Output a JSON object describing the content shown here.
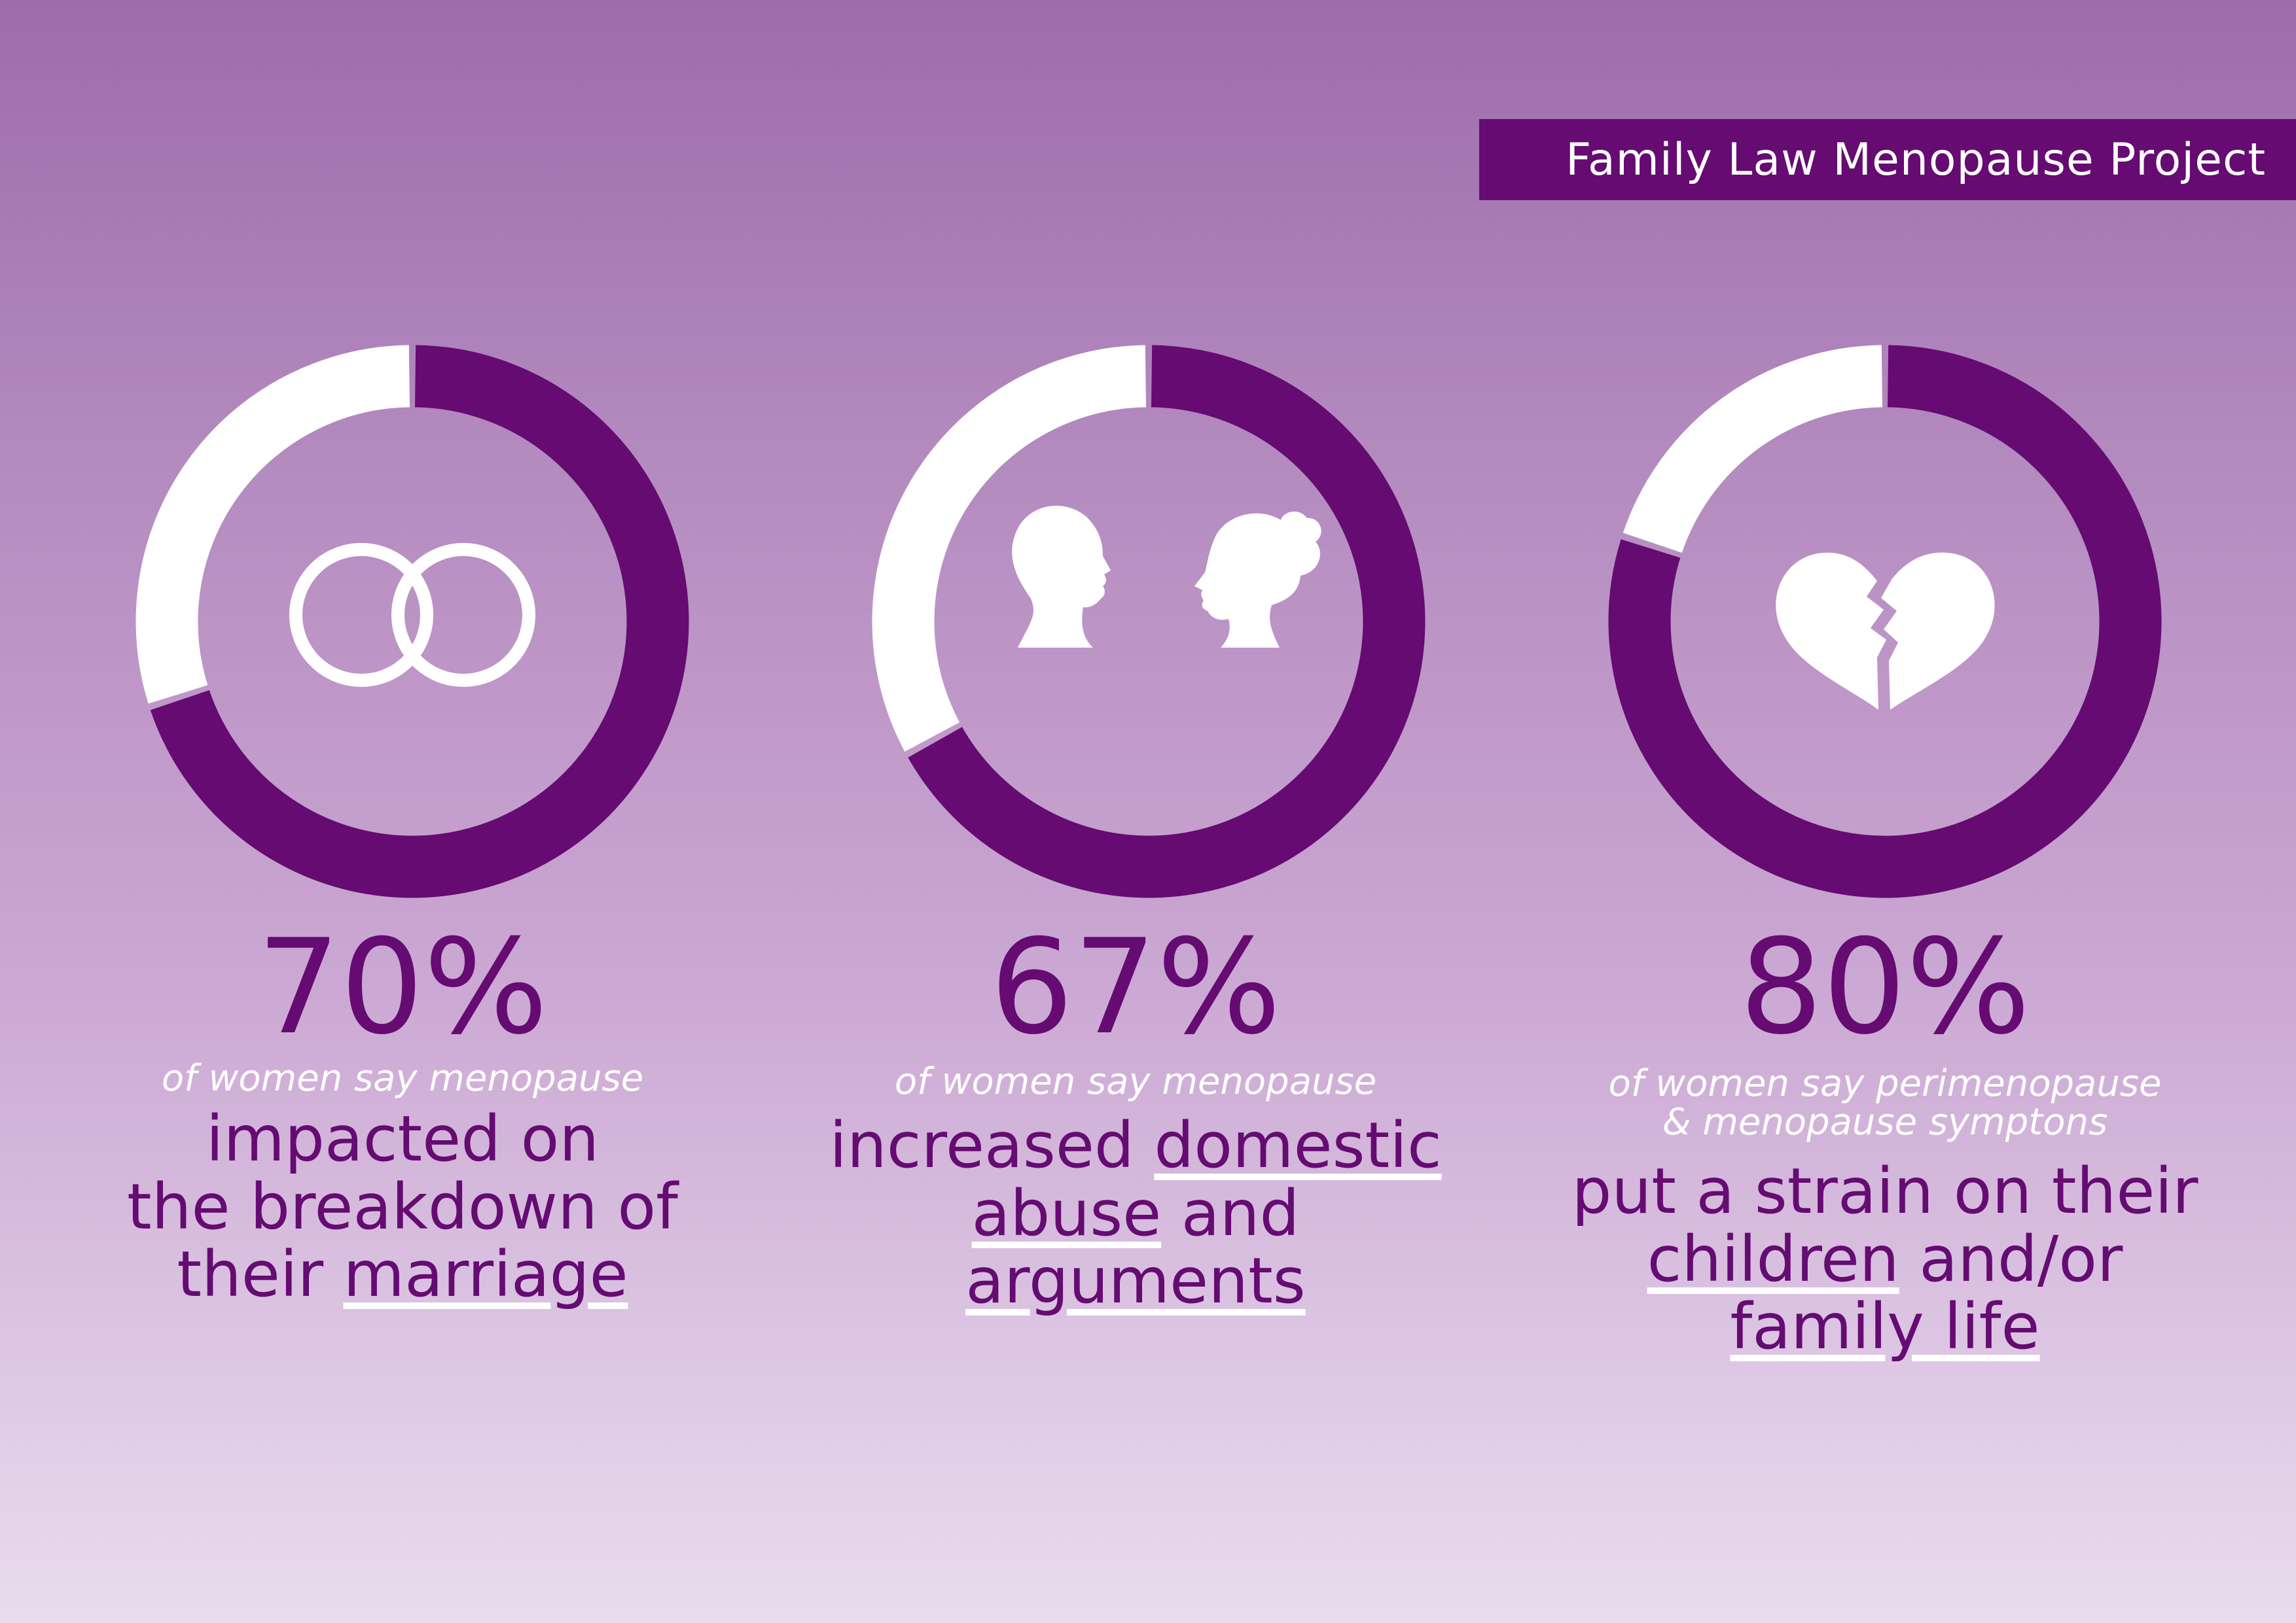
{
  "banner": {
    "title": "Family Law Menopause Project"
  },
  "colors": {
    "ring_fill": "#650b72",
    "ring_rest": "#ffffff",
    "text": "#650b72",
    "intro": "#ffffff"
  },
  "chart_data": [
    {
      "type": "pie",
      "values": [
        70,
        30
      ],
      "icon": "wedding-rings-icon",
      "value_label": "70%",
      "intro": "of women say menopause",
      "lines": [
        [
          {
            "text": "impacted on",
            "hl": false
          }
        ],
        [
          {
            "text": "the breakdown of",
            "hl": false
          }
        ],
        [
          {
            "text": "their ",
            "hl": false
          },
          {
            "text": "marriage",
            "hl": true
          }
        ]
      ]
    },
    {
      "type": "pie",
      "values": [
        67,
        33
      ],
      "icon": "couple-silhouette-icon",
      "value_label": "67%",
      "intro": "of women say menopause",
      "lines": [
        [
          {
            "text": "increased ",
            "hl": false
          },
          {
            "text": "domestic",
            "hl": true
          }
        ],
        [
          {
            "text": "abuse",
            "hl": true
          },
          {
            "text": " and",
            "hl": false
          }
        ],
        [
          {
            "text": "arguments",
            "hl": true
          }
        ]
      ]
    },
    {
      "type": "pie",
      "values": [
        80,
        20
      ],
      "icon": "broken-heart-icon",
      "value_label": "80%",
      "intro": "of women say perimenopause & menopause symptons",
      "intro_lines": [
        "of women say perimenopause",
        "& menopause symptons"
      ],
      "lines": [
        [
          {
            "text": "put a strain on their",
            "hl": false
          }
        ],
        [
          {
            "text": "children",
            "hl": true
          },
          {
            "text": " and/or",
            "hl": false
          }
        ],
        [
          {
            "text": "family life",
            "hl": true
          }
        ]
      ]
    }
  ]
}
